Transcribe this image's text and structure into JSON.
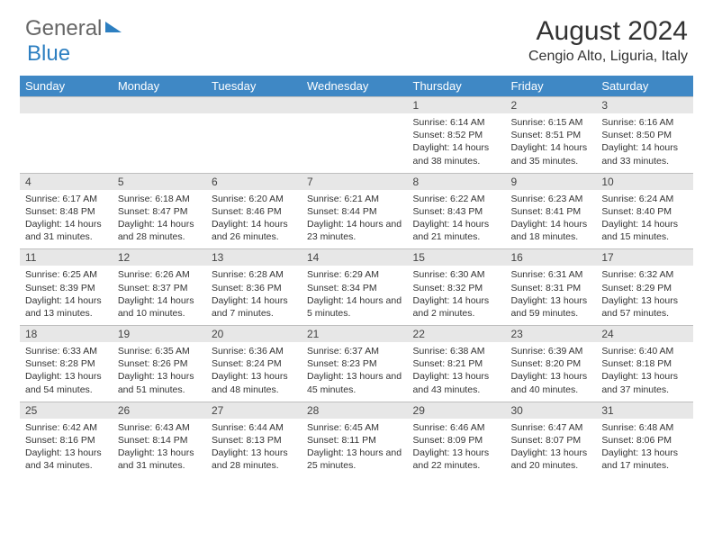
{
  "logo": {
    "part1": "General",
    "part2": "Blue"
  },
  "title": "August 2024",
  "location": "Cengio Alto, Liguria, Italy",
  "colors": {
    "header_bg": "#3f88c5",
    "header_fg": "#ffffff",
    "daynum_bg": "#e7e7e7",
    "border": "#3f88c5",
    "logo_blue": "#2d7fc1"
  },
  "day_names": [
    "Sunday",
    "Monday",
    "Tuesday",
    "Wednesday",
    "Thursday",
    "Friday",
    "Saturday"
  ],
  "weeks": [
    [
      null,
      null,
      null,
      null,
      {
        "n": "1",
        "sr": "6:14 AM",
        "ss": "8:52 PM",
        "dl": "14 hours and 38 minutes."
      },
      {
        "n": "2",
        "sr": "6:15 AM",
        "ss": "8:51 PM",
        "dl": "14 hours and 35 minutes."
      },
      {
        "n": "3",
        "sr": "6:16 AM",
        "ss": "8:50 PM",
        "dl": "14 hours and 33 minutes."
      }
    ],
    [
      {
        "n": "4",
        "sr": "6:17 AM",
        "ss": "8:48 PM",
        "dl": "14 hours and 31 minutes."
      },
      {
        "n": "5",
        "sr": "6:18 AM",
        "ss": "8:47 PM",
        "dl": "14 hours and 28 minutes."
      },
      {
        "n": "6",
        "sr": "6:20 AM",
        "ss": "8:46 PM",
        "dl": "14 hours and 26 minutes."
      },
      {
        "n": "7",
        "sr": "6:21 AM",
        "ss": "8:44 PM",
        "dl": "14 hours and 23 minutes."
      },
      {
        "n": "8",
        "sr": "6:22 AM",
        "ss": "8:43 PM",
        "dl": "14 hours and 21 minutes."
      },
      {
        "n": "9",
        "sr": "6:23 AM",
        "ss": "8:41 PM",
        "dl": "14 hours and 18 minutes."
      },
      {
        "n": "10",
        "sr": "6:24 AM",
        "ss": "8:40 PM",
        "dl": "14 hours and 15 minutes."
      }
    ],
    [
      {
        "n": "11",
        "sr": "6:25 AM",
        "ss": "8:39 PM",
        "dl": "14 hours and 13 minutes."
      },
      {
        "n": "12",
        "sr": "6:26 AM",
        "ss": "8:37 PM",
        "dl": "14 hours and 10 minutes."
      },
      {
        "n": "13",
        "sr": "6:28 AM",
        "ss": "8:36 PM",
        "dl": "14 hours and 7 minutes."
      },
      {
        "n": "14",
        "sr": "6:29 AM",
        "ss": "8:34 PM",
        "dl": "14 hours and 5 minutes."
      },
      {
        "n": "15",
        "sr": "6:30 AM",
        "ss": "8:32 PM",
        "dl": "14 hours and 2 minutes."
      },
      {
        "n": "16",
        "sr": "6:31 AM",
        "ss": "8:31 PM",
        "dl": "13 hours and 59 minutes."
      },
      {
        "n": "17",
        "sr": "6:32 AM",
        "ss": "8:29 PM",
        "dl": "13 hours and 57 minutes."
      }
    ],
    [
      {
        "n": "18",
        "sr": "6:33 AM",
        "ss": "8:28 PM",
        "dl": "13 hours and 54 minutes."
      },
      {
        "n": "19",
        "sr": "6:35 AM",
        "ss": "8:26 PM",
        "dl": "13 hours and 51 minutes."
      },
      {
        "n": "20",
        "sr": "6:36 AM",
        "ss": "8:24 PM",
        "dl": "13 hours and 48 minutes."
      },
      {
        "n": "21",
        "sr": "6:37 AM",
        "ss": "8:23 PM",
        "dl": "13 hours and 45 minutes."
      },
      {
        "n": "22",
        "sr": "6:38 AM",
        "ss": "8:21 PM",
        "dl": "13 hours and 43 minutes."
      },
      {
        "n": "23",
        "sr": "6:39 AM",
        "ss": "8:20 PM",
        "dl": "13 hours and 40 minutes."
      },
      {
        "n": "24",
        "sr": "6:40 AM",
        "ss": "8:18 PM",
        "dl": "13 hours and 37 minutes."
      }
    ],
    [
      {
        "n": "25",
        "sr": "6:42 AM",
        "ss": "8:16 PM",
        "dl": "13 hours and 34 minutes."
      },
      {
        "n": "26",
        "sr": "6:43 AM",
        "ss": "8:14 PM",
        "dl": "13 hours and 31 minutes."
      },
      {
        "n": "27",
        "sr": "6:44 AM",
        "ss": "8:13 PM",
        "dl": "13 hours and 28 minutes."
      },
      {
        "n": "28",
        "sr": "6:45 AM",
        "ss": "8:11 PM",
        "dl": "13 hours and 25 minutes."
      },
      {
        "n": "29",
        "sr": "6:46 AM",
        "ss": "8:09 PM",
        "dl": "13 hours and 22 minutes."
      },
      {
        "n": "30",
        "sr": "6:47 AM",
        "ss": "8:07 PM",
        "dl": "13 hours and 20 minutes."
      },
      {
        "n": "31",
        "sr": "6:48 AM",
        "ss": "8:06 PM",
        "dl": "13 hours and 17 minutes."
      }
    ]
  ],
  "labels": {
    "sunrise": "Sunrise: ",
    "sunset": "Sunset: ",
    "daylight": "Daylight: "
  }
}
